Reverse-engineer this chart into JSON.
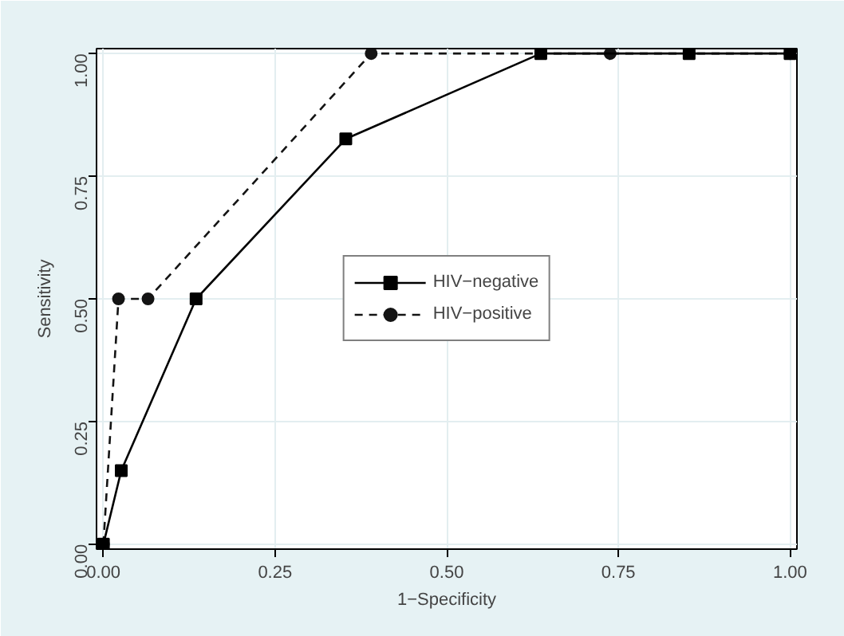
{
  "chart_data": {
    "type": "line",
    "xlabel": "1−Specificity",
    "ylabel": "Sensitivity",
    "xlim": [
      -0.01,
      1.01
    ],
    "ylim": [
      -0.01,
      1.01
    ],
    "xticks": [
      {
        "value": 0,
        "label": "0.00"
      },
      {
        "value": 0.25,
        "label": "0.25"
      },
      {
        "value": 0.5,
        "label": "0.50"
      },
      {
        "value": 0.75,
        "label": "0.75"
      },
      {
        "value": 1,
        "label": "1.00"
      }
    ],
    "yticks": [
      {
        "value": 0,
        "label": "0.00"
      },
      {
        "value": 0.25,
        "label": "0.25"
      },
      {
        "value": 0.5,
        "label": "0.50"
      },
      {
        "value": 0.75,
        "label": "0.75"
      },
      {
        "value": 1,
        "label": "1.00"
      }
    ],
    "grid": true,
    "legend": "center",
    "series": [
      {
        "name": "HIV−negative",
        "color": "#000000",
        "marker": "square",
        "line_style": "solid",
        "x": [
          0,
          0.026,
          0.135,
          0.353,
          0.637,
          0.853,
          1.0
        ],
        "values": [
          0,
          0.15,
          0.5,
          0.826,
          1,
          1,
          1
        ]
      },
      {
        "name": "HIV−positive",
        "color": "#141414",
        "marker": "circle",
        "line_style": "dashed",
        "x": [
          0,
          0.022,
          0.065,
          0.39,
          0.738,
          1.0
        ],
        "values": [
          0,
          0.5,
          0.5,
          1,
          1,
          1
        ]
      }
    ]
  }
}
